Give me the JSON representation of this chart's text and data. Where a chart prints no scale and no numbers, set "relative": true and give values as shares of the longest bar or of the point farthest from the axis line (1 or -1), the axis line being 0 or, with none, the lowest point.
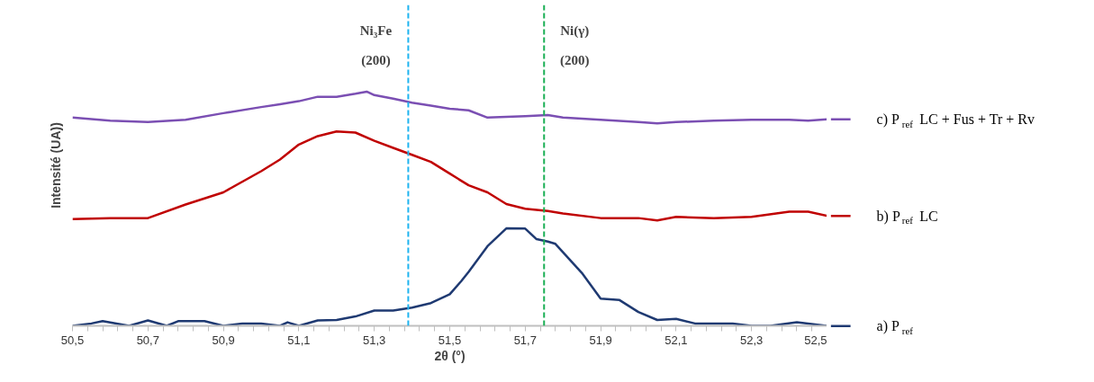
{
  "chart_data": {
    "type": "line",
    "relative": true,
    "xlabel": "2θ (°)",
    "ylabel": "Intensité (UA))",
    "xlim": [
      50.5,
      52.5
    ],
    "xticks": [
      {
        "value": 50.5,
        "label": "50,5"
      },
      {
        "value": 50.54,
        "label": null
      },
      {
        "value": 50.58,
        "label": null
      },
      {
        "value": 50.62,
        "label": null
      },
      {
        "value": 50.66,
        "label": null
      },
      {
        "value": 50.7,
        "label": "50,7"
      },
      {
        "value": 50.74,
        "label": null
      },
      {
        "value": 50.78,
        "label": null
      },
      {
        "value": 50.82,
        "label": null
      },
      {
        "value": 50.86,
        "label": null
      },
      {
        "value": 50.9,
        "label": "50,9"
      },
      {
        "value": 50.94,
        "label": null
      },
      {
        "value": 50.98,
        "label": null
      },
      {
        "value": 51.02,
        "label": null
      },
      {
        "value": 51.06,
        "label": null
      },
      {
        "value": 51.1,
        "label": "51,1"
      },
      {
        "value": 51.14,
        "label": null
      },
      {
        "value": 51.18,
        "label": null
      },
      {
        "value": 51.22,
        "label": null
      },
      {
        "value": 51.26,
        "label": null
      },
      {
        "value": 51.3,
        "label": "51,3"
      },
      {
        "value": 51.34,
        "label": null
      },
      {
        "value": 51.38,
        "label": null
      },
      {
        "value": 51.42,
        "label": null
      },
      {
        "value": 51.46,
        "label": null
      },
      {
        "value": 51.5,
        "label": "51,5"
      },
      {
        "value": 51.54,
        "label": null
      },
      {
        "value": 51.58,
        "label": null
      },
      {
        "value": 51.62,
        "label": null
      },
      {
        "value": 51.66,
        "label": null
      },
      {
        "value": 51.7,
        "label": "51,7"
      },
      {
        "value": 51.74,
        "label": null
      },
      {
        "value": 51.78,
        "label": null
      },
      {
        "value": 51.82,
        "label": null
      },
      {
        "value": 51.86,
        "label": null
      },
      {
        "value": 51.9,
        "label": "51,9"
      },
      {
        "value": 51.94,
        "label": null
      },
      {
        "value": 51.98,
        "label": null
      },
      {
        "value": 52.02,
        "label": null
      },
      {
        "value": 52.06,
        "label": null
      },
      {
        "value": 52.1,
        "label": "52,1"
      },
      {
        "value": 52.14,
        "label": null
      },
      {
        "value": 52.18,
        "label": null
      },
      {
        "value": 52.22,
        "label": null
      },
      {
        "value": 52.26,
        "label": null
      },
      {
        "value": 52.3,
        "label": "52,3"
      },
      {
        "value": 52.34,
        "label": null
      },
      {
        "value": 52.38,
        "label": null
      },
      {
        "value": 52.42,
        "label": null
      },
      {
        "value": 52.46,
        "label": null
      },
      {
        "value": 52.5,
        "label": "52,5"
      }
    ],
    "grid": false,
    "legend": "right",
    "marker": "none",
    "line_style": "solid",
    "series": [
      {
        "name": "a) P$_{ref}$",
        "color": "#1f3a72",
        "x": [
          50.5,
          50.55,
          50.58,
          50.65,
          50.7,
          50.75,
          50.78,
          50.85,
          50.9,
          50.95,
          51.0,
          51.05,
          51.07,
          51.1,
          51.15,
          51.2,
          51.25,
          51.3,
          51.35,
          51.4,
          51.45,
          51.5,
          51.53,
          51.55,
          51.6,
          51.65,
          51.7,
          51.73,
          51.76,
          51.78,
          51.85,
          51.9,
          51.95,
          52.0,
          52.05,
          52.1,
          52.15,
          52.2,
          52.25,
          52.3,
          52.35,
          52.42,
          52.5
        ],
        "values": [
          0,
          0.01,
          0.02,
          0,
          0.023,
          0,
          0.02,
          0.02,
          0,
          0.01,
          0.01,
          0,
          0.015,
          0,
          0.023,
          0.025,
          0.04,
          0.065,
          0.065,
          0.078,
          0.097,
          0.135,
          0.19,
          0.23,
          0.34,
          0.416,
          0.415,
          0.37,
          0.36,
          0.35,
          0.226,
          0.116,
          0.11,
          0.059,
          0.025,
          0.03,
          0.01,
          0.01,
          0.01,
          0,
          0,
          0.015,
          0
        ]
      },
      {
        "name": "b) P$_{ref}$ LC",
        "color": "#c00000",
        "x": [
          50.5,
          50.6,
          50.7,
          50.8,
          50.9,
          51.0,
          51.05,
          51.1,
          51.15,
          51.2,
          51.25,
          51.3,
          51.35,
          51.4,
          51.45,
          51.5,
          51.55,
          51.6,
          51.65,
          51.7,
          51.76,
          51.8,
          51.9,
          52.0,
          52.05,
          52.1,
          52.2,
          52.3,
          52.4,
          52.45,
          52.5
        ],
        "values": [
          0.456,
          0.46,
          0.46,
          0.518,
          0.57,
          0.66,
          0.71,
          0.774,
          0.81,
          0.83,
          0.825,
          0.79,
          0.76,
          0.73,
          0.7,
          0.65,
          0.6,
          0.57,
          0.52,
          0.5,
          0.49,
          0.48,
          0.46,
          0.46,
          0.45,
          0.465,
          0.46,
          0.465,
          0.487,
          0.487,
          0.47
        ]
      },
      {
        "name": "c) P$_{ref}$ LC + Fus + Tr + Rv",
        "color": "#7b4fb3",
        "x": [
          50.5,
          50.6,
          50.7,
          50.8,
          50.9,
          51.0,
          51.05,
          51.1,
          51.15,
          51.2,
          51.25,
          51.28,
          51.3,
          51.35,
          51.4,
          51.45,
          51.5,
          51.55,
          51.6,
          51.7,
          51.76,
          51.8,
          51.9,
          52.0,
          52.05,
          52.1,
          52.2,
          52.3,
          52.4,
          52.45,
          52.5
        ],
        "values": [
          0.889,
          0.876,
          0.87,
          0.88,
          0.908,
          0.934,
          0.946,
          0.959,
          0.978,
          0.978,
          0.991,
          1,
          0.985,
          0.97,
          0.953,
          0.94,
          0.927,
          0.92,
          0.889,
          0.895,
          0.9,
          0.889,
          0.88,
          0.87,
          0.864,
          0.87,
          0.876,
          0.88,
          0.88,
          0.876,
          0.882
        ]
      }
    ],
    "ref_lines": [
      {
        "axis": "x",
        "value": 51.39,
        "label": "Ni₃Fe\n(200)",
        "color": "#1eb4f0",
        "line_style": "dashed"
      },
      {
        "axis": "x",
        "value": 51.75,
        "label": "Ni(γ)\n(200)",
        "color": "#1aaf54",
        "line_style": "dashed"
      }
    ]
  }
}
